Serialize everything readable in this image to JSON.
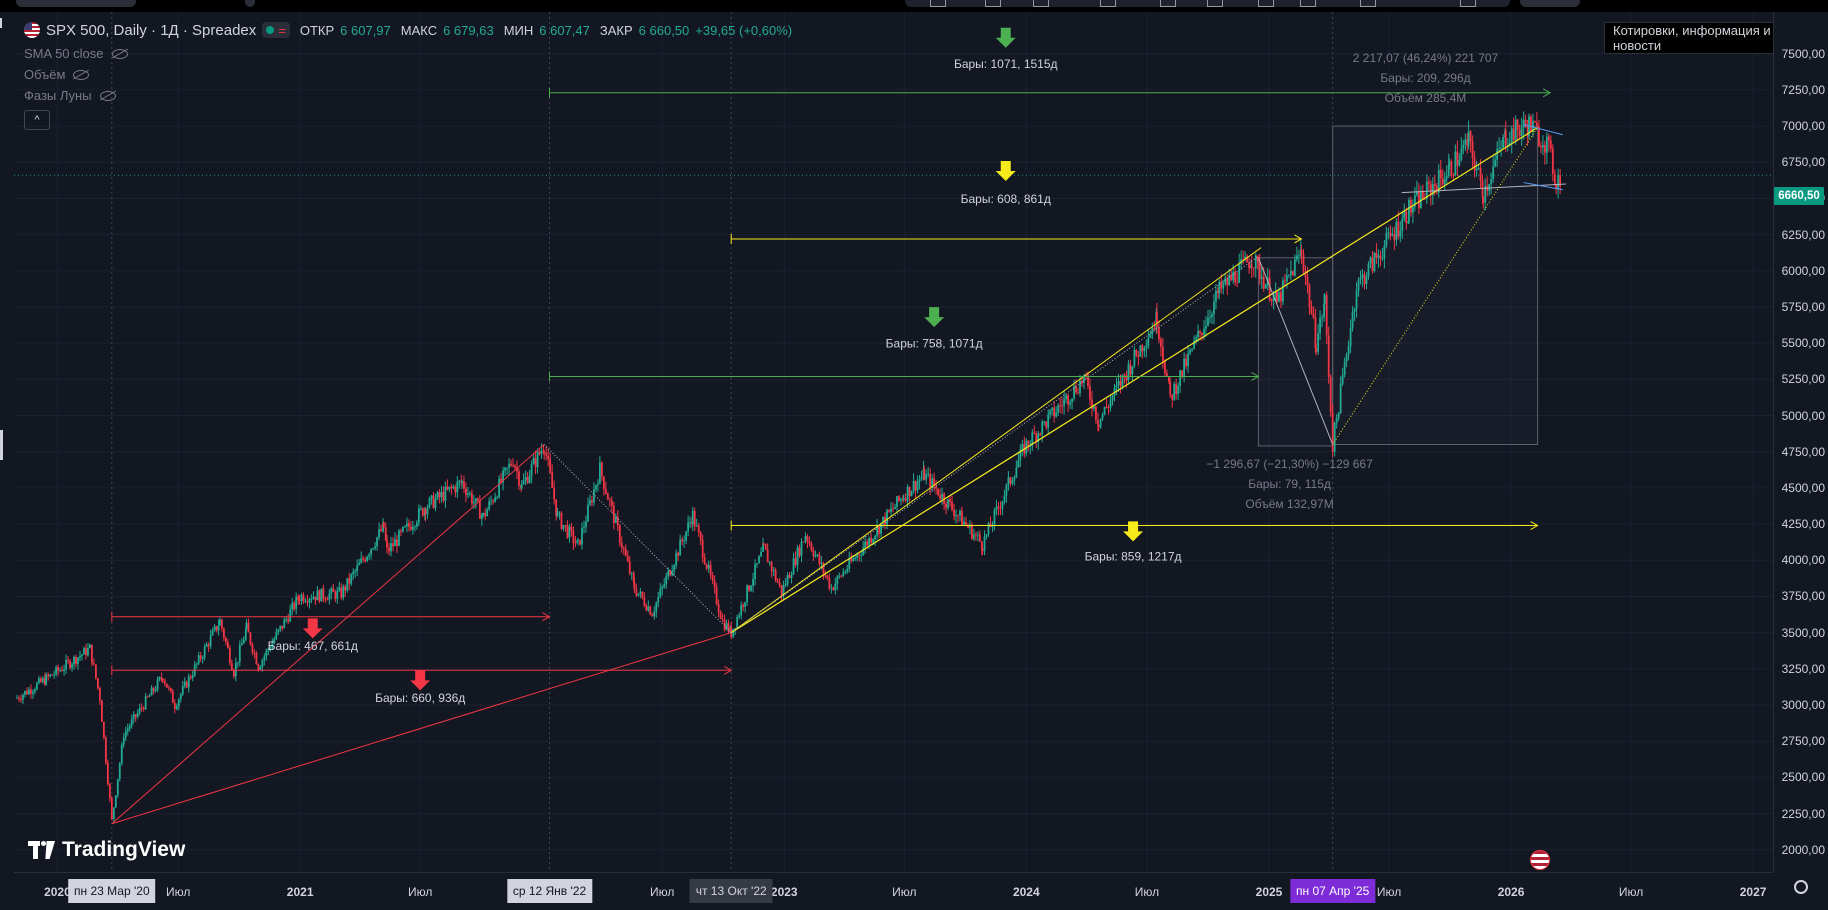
{
  "legend": {
    "title": "SPX 500, Daily · 1Д · Spreadex",
    "open_label": "ОТКР",
    "open": "6 607,97",
    "high_label": "МАКС",
    "high": "6 679,63",
    "low_label": "МИН",
    "low": "6 607,47",
    "close_label": "ЗАКР",
    "close": "6 660,50",
    "change": "+39,65 (+0,60%)",
    "indicators": [
      "SMA 50 close",
      "Объём",
      "Фазы Луны"
    ],
    "collapse_glyph": "^"
  },
  "news_button": "Котировки, информация и новости",
  "brand": "TradingView",
  "colors": {
    "up": "#22ab94",
    "down": "#f23645",
    "yellow": "#f7ea1b",
    "green": "#4caf50",
    "red": "#f23645"
  },
  "chart_data": {
    "type": "candlestick",
    "symbol": "SPX 500",
    "interval": "Daily",
    "x_range": [
      "2019-11-01",
      "2027-01-31"
    ],
    "y_range": [
      1950,
      7650
    ],
    "y_ticks": [
      "7500,00",
      "7250,00",
      "7000,00",
      "6750,00",
      "6500,00",
      "6250,00",
      "6000,00",
      "5750,00",
      "5500,00",
      "5250,00",
      "5000,00",
      "4750,00",
      "4500,00",
      "4250,00",
      "4000,00",
      "3750,00",
      "3500,00",
      "3250,00",
      "3000,00",
      "2750,00",
      "2500,00",
      "2250,00",
      "2000,00"
    ],
    "y_tick_values": [
      7500,
      7250,
      7000,
      6750,
      6500,
      6250,
      6000,
      5750,
      5500,
      5250,
      5000,
      4750,
      4500,
      4250,
      4000,
      3750,
      3500,
      3250,
      3000,
      2750,
      2500,
      2250,
      2000
    ],
    "last_price": "6660,50",
    "last_price_value": 6660.5,
    "x_ticks": [
      {
        "label": "2020",
        "date": "2020-01-01",
        "bold": true
      },
      {
        "label": "Июл",
        "date": "2020-07-01"
      },
      {
        "label": "2021",
        "date": "2021-01-01",
        "bold": true
      },
      {
        "label": "Июл",
        "date": "2021-07-01"
      },
      {
        "label": "Июл",
        "date": "2022-07-01"
      },
      {
        "label": "2023",
        "date": "2023-01-01",
        "bold": true
      },
      {
        "label": "Июл",
        "date": "2023-07-01"
      },
      {
        "label": "2024",
        "date": "2024-01-01",
        "bold": true
      },
      {
        "label": "Июл",
        "date": "2024-07-01"
      },
      {
        "label": "2025",
        "date": "2025-01-01",
        "bold": true
      },
      {
        "label": "Июл",
        "date": "2025-07-01"
      },
      {
        "label": "2026",
        "date": "2026-01-01",
        "bold": true
      },
      {
        "label": "Июл",
        "date": "2026-07-01"
      },
      {
        "label": "2027",
        "date": "2027-01-01",
        "bold": true
      }
    ],
    "crosshair_labels": [
      {
        "label": "пн 23 Мар '20",
        "date": "2020-03-23",
        "style": "grey"
      },
      {
        "label": "ср 12 Янв '22",
        "date": "2022-01-12",
        "style": "grey"
      },
      {
        "label": "чт 13 Окт '22",
        "date": "2022-10-13",
        "style": "dark"
      },
      {
        "label": "пн 07 Апр '25",
        "date": "2025-04-07",
        "style": "purple"
      }
    ],
    "price_path": [
      [
        "2019-11-01",
        3050
      ],
      [
        "2019-12-15",
        3180
      ],
      [
        "2020-02-19",
        3390
      ],
      [
        "2020-03-05",
        3050
      ],
      [
        "2020-03-23",
        2200
      ],
      [
        "2020-04-10",
        2800
      ],
      [
        "2020-06-08",
        3200
      ],
      [
        "2020-06-26",
        3000
      ],
      [
        "2020-09-02",
        3580
      ],
      [
        "2020-09-23",
        3230
      ],
      [
        "2020-10-12",
        3530
      ],
      [
        "2020-10-30",
        3270
      ],
      [
        "2020-12-31",
        3750
      ],
      [
        "2021-03-04",
        3770
      ],
      [
        "2021-05-07",
        4230
      ],
      [
        "2021-05-12",
        4060
      ],
      [
        "2021-07-09",
        4370
      ],
      [
        "2021-09-02",
        4540
      ],
      [
        "2021-10-04",
        4300
      ],
      [
        "2021-11-18",
        4700
      ],
      [
        "2021-12-01",
        4510
      ],
      [
        "2022-01-04",
        4800
      ],
      [
        "2022-01-24",
        4300
      ],
      [
        "2022-02-24",
        4100
      ],
      [
        "2022-03-29",
        4630
      ],
      [
        "2022-05-20",
        3810
      ],
      [
        "2022-06-16",
        3640
      ],
      [
        "2022-08-16",
        4310
      ],
      [
        "2022-09-30",
        3580
      ],
      [
        "2022-10-13",
        3500
      ],
      [
        "2022-12-01",
        4080
      ],
      [
        "2022-12-28",
        3780
      ],
      [
        "2023-02-02",
        4180
      ],
      [
        "2023-03-13",
        3810
      ],
      [
        "2023-06-30",
        4450
      ],
      [
        "2023-07-31",
        4590
      ],
      [
        "2023-10-27",
        4110
      ],
      [
        "2023-12-29",
        4780
      ],
      [
        "2024-03-28",
        5260
      ],
      [
        "2024-04-19",
        4960
      ],
      [
        "2024-07-16",
        5670
      ],
      [
        "2024-08-05",
        5120
      ],
      [
        "2024-10-18",
        5860
      ],
      [
        "2024-12-06",
        6090
      ],
      [
        "2025-01-13",
        5780
      ],
      [
        "2025-02-19",
        6140
      ],
      [
        "2025-03-13",
        5500
      ],
      [
        "2025-03-26",
        5790
      ],
      [
        "2025-04-07",
        4800
      ],
      [
        "2025-05-13",
        5890
      ],
      [
        "2025-07-31",
        6420
      ],
      [
        "2025-09-30",
        6700
      ],
      [
        "2025-10-29",
        6890
      ],
      [
        "2025-11-20",
        6540
      ],
      [
        "2025-12-24",
        6930
      ],
      [
        "2026-01-28",
        7010
      ],
      [
        "2026-02-24",
        6880
      ],
      [
        "2026-03-10",
        6620
      ],
      [
        "2026-03-17",
        6660
      ]
    ],
    "annotations": [
      {
        "text": "Бары: 1071, 1515д",
        "color": "green",
        "from": "2022-01-12",
        "to": "2026-03-01",
        "price": 7230,
        "label_date": "2023-12-01",
        "label_price": 7400,
        "arrow_price": 7610
      },
      {
        "text": "Бары: 608, 861д",
        "color": "yellow",
        "from": "2022-10-13",
        "to": "2025-02-19",
        "price": 6220,
        "label_date": "2023-12-01",
        "label_price": 6470,
        "arrow_price": 6690
      },
      {
        "text": "Бары: 758, 1071д",
        "color": "green",
        "from": "2022-01-12",
        "to": "2024-12-16",
        "price": 5270,
        "label_date": "2023-08-15",
        "label_price": 5470,
        "arrow_price": 5680
      },
      {
        "text": "Бары: 859, 1217д",
        "color": "yellow",
        "from": "2022-10-13",
        "to": "2026-02-10",
        "price": 4240,
        "label_date": "2024-06-10",
        "label_price": 4000,
        "arrow_price": 4200
      },
      {
        "text": "Бары: 467, 661д",
        "color": "red",
        "from": "2020-03-23",
        "to": "2022-01-12",
        "price": 3610,
        "label_date": "2021-01-20",
        "label_price": 3380,
        "arrow_price": 3530
      },
      {
        "text": "Бары: 660, 936д",
        "color": "red",
        "from": "2020-03-23",
        "to": "2022-10-13",
        "price": 3240,
        "label_date": "2021-07-01",
        "label_price": 3020,
        "arrow_price": 3170
      }
    ],
    "measure_boxes": [
      {
        "lines": [
          "2 217,07 (46,24%) 221 707",
          "Бары: 209, 296д",
          "Объём 285,4M"
        ],
        "from": "2025-04-07",
        "to": "2026-02-10",
        "p1": 4800,
        "p2": 7000,
        "label_date": "2025-08-25"
      },
      {
        "lines": [
          "−1 296,67 (−21,30%) −129 667",
          "Бары: 79, 115д",
          "Объём 132,97M"
        ],
        "from": "2024-12-16",
        "to": "2025-04-07",
        "p1": 6090,
        "p2": 4790,
        "label_date": "2025-02-01"
      }
    ]
  }
}
